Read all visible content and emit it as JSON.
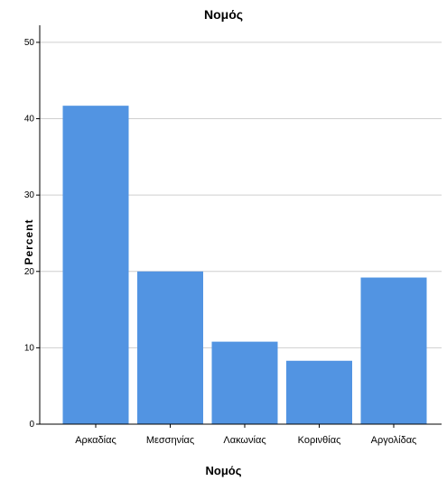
{
  "chart_data": {
    "type": "bar",
    "title": "Νομός",
    "xlabel": "Νομός",
    "ylabel": "Percent",
    "categories": [
      "Αρκαδίας",
      "Μεσσηνίας",
      "Λακωνίας",
      "Κορινθίας",
      "Αργολίδας"
    ],
    "values": [
      41.7,
      20.0,
      10.8,
      8.3,
      19.2
    ],
    "ylim": [
      0,
      52
    ],
    "yticks": [
      0,
      10,
      20,
      30,
      40,
      50
    ],
    "grid": true,
    "bar_color": "#5294E2",
    "grid_color": "#cfcfcf"
  }
}
